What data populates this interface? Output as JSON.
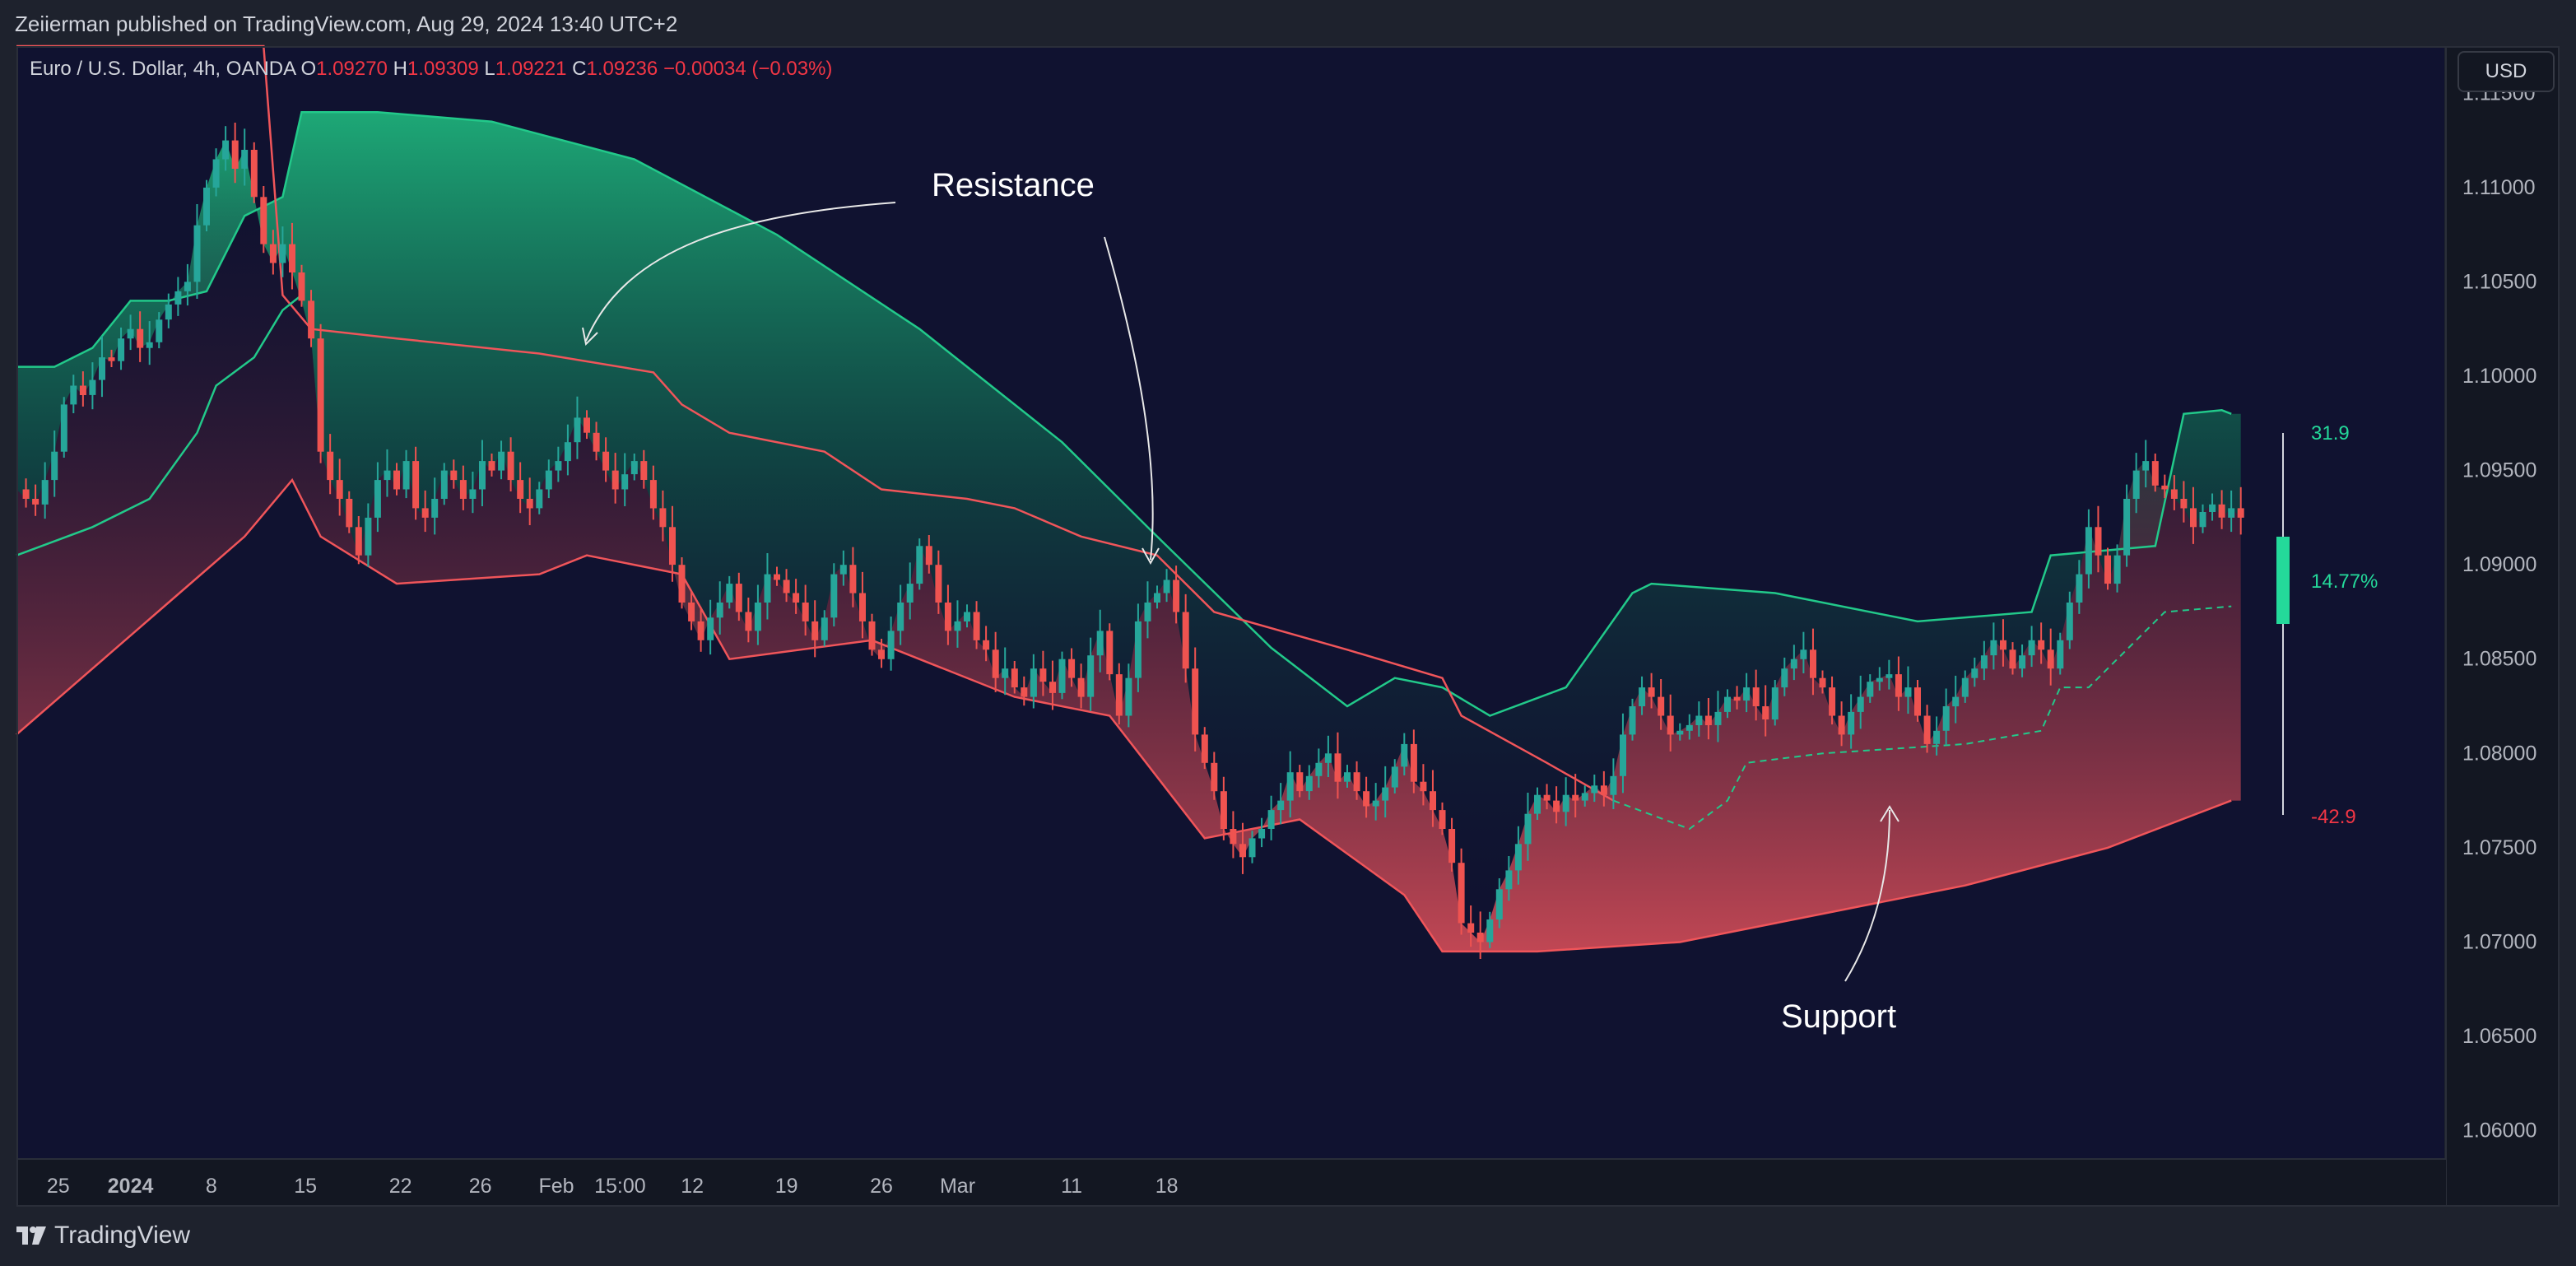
{
  "header": {
    "published": "Zeiierman published on TradingView.com, Aug 29, 2024 13:40 UTC+2"
  },
  "legend": {
    "symbol": "Euro / U.S. Dollar, 4h, OANDA",
    "o_label": "O",
    "o": "1.09270",
    "h_label": "H",
    "h": "1.09309",
    "l_label": "L",
    "l": "1.09221",
    "c_label": "C",
    "c": "1.09236",
    "change": "−0.00034 (−0.03%)"
  },
  "currency_button": "USD",
  "brand": {
    "name": "TradingView"
  },
  "colors": {
    "background": "#101230",
    "resistance": "#22c98a",
    "support": "#f0555a",
    "candle_up": "#26a69a",
    "candle_down": "#ef5350",
    "axis_text": "#b2b5be",
    "accent_green": "#24d99a"
  },
  "chart_data": {
    "type": "candlestick",
    "title": "Euro / U.S. Dollar, 4h, OANDA",
    "ylim": [
      1.0585,
      1.1175
    ],
    "y_ticks": [
      "1.11500",
      "1.11000",
      "1.10500",
      "1.10000",
      "1.09500",
      "1.09000",
      "1.08500",
      "1.08000",
      "1.07500",
      "1.07000",
      "1.06500",
      "1.06000"
    ],
    "x_ticks": [
      "25",
      "2024",
      "8",
      "15",
      "22",
      "26",
      "Feb",
      "15:00",
      "12",
      "19",
      "26",
      "Mar",
      "11",
      "18"
    ],
    "annotations": [
      "Resistance",
      "Support"
    ],
    "gauge": {
      "top": "31.9",
      "middle": "14.77%",
      "bottom": "-42.9"
    },
    "series": [
      {
        "name": "Resistance",
        "description": "upper band",
        "x": [
          0,
          4,
          8,
          12,
          16,
          20,
          24,
          28,
          30,
          38,
          50,
          65,
          80,
          95,
          110,
          120,
          132,
          140,
          145,
          150,
          155,
          163,
          170,
          172,
          185,
          200,
          212,
          214,
          225,
          228,
          232,
          233
        ],
        "y": [
          1.1005,
          1.1005,
          1.1015,
          1.104,
          1.104,
          1.1045,
          1.1085,
          1.1095,
          1.114,
          1.114,
          1.1135,
          1.1115,
          1.1075,
          1.1025,
          1.0965,
          1.0915,
          1.0856,
          1.0825,
          1.084,
          1.0835,
          1.082,
          1.0835,
          1.0885,
          1.089,
          1.0885,
          1.087,
          1.0875,
          1.0905,
          1.091,
          1.098,
          1.0982,
          1.098
        ]
      },
      {
        "name": "Support",
        "description": "lower band",
        "x": [
          0,
          8,
          16,
          24,
          29,
          32,
          40,
          55,
          60,
          70,
          75,
          90,
          105,
          115,
          125,
          135,
          146,
          150,
          155,
          160,
          175,
          190,
          205,
          220,
          233
        ],
        "y": [
          1.081,
          1.0845,
          1.088,
          1.0915,
          1.0945,
          1.0915,
          1.089,
          1.0895,
          1.0905,
          1.0895,
          1.085,
          1.086,
          1.083,
          1.082,
          1.0755,
          1.0765,
          1.0725,
          1.0695,
          1.0695,
          1.0695,
          1.07,
          1.0715,
          1.073,
          1.075,
          1.0775
        ]
      },
      {
        "name": "Resistance line",
        "description": "inner red line",
        "x": [
          0,
          26,
          28,
          31,
          40,
          55,
          67,
          70,
          75,
          85,
          91,
          100,
          105,
          112,
          120,
          126,
          140,
          150,
          152,
          161,
          168
        ],
        "y": [
          1.1175,
          1.1175,
          1.1043,
          1.1025,
          1.102,
          1.1012,
          1.1002,
          1.0985,
          1.097,
          1.096,
          1.094,
          1.0935,
          1.093,
          1.0915,
          1.0905,
          1.0875,
          1.0855,
          1.084,
          1.082,
          1.0795,
          1.0775
        ]
      },
      {
        "name": "Support line",
        "description": "inner green line",
        "x": [
          0,
          8,
          14,
          19,
          21,
          25,
          28,
          30
        ],
        "y": [
          1.0905,
          1.092,
          1.0935,
          1.097,
          1.0995,
          1.101,
          1.1035,
          1.1043
        ]
      },
      {
        "name": "Dashed support",
        "description": "dashed projection",
        "x": [
          168,
          176,
          180,
          182,
          190,
          205,
          213,
          215,
          218,
          222,
          226,
          233
        ],
        "y": [
          1.0775,
          1.076,
          1.0775,
          1.0795,
          1.08,
          1.0805,
          1.0812,
          1.0835,
          1.0835,
          1.0855,
          1.0875,
          1.0878
        ]
      }
    ],
    "path_y": [
      1.094,
      1.0935,
      1.0932,
      1.0945,
      1.096,
      1.0985,
      1.0995,
      1.099,
      1.0998,
      1.101,
      1.1008,
      1.102,
      1.1025,
      1.1015,
      1.1018,
      1.103,
      1.1038,
      1.1045,
      1.105,
      1.108,
      1.11,
      1.1115,
      1.1125,
      1.111,
      1.112,
      1.1095,
      1.107,
      1.106,
      1.107,
      1.1055,
      1.104,
      1.102,
      1.096,
      1.0945,
      1.0935,
      1.092,
      1.0905,
      1.0925,
      1.0945,
      1.095,
      1.094,
      1.0955,
      1.093,
      1.0925,
      1.0935,
      1.095,
      1.0945,
      1.0935,
      1.094,
      1.0955,
      1.095,
      1.096,
      1.0945,
      1.0935,
      1.093,
      1.094,
      1.095,
      1.0955,
      1.0965,
      1.0978,
      1.097,
      1.096,
      1.095,
      1.094,
      1.0948,
      1.0955,
      1.0945,
      1.093,
      1.092,
      1.09,
      1.088,
      1.087,
      1.086,
      1.0872,
      1.088,
      1.089,
      1.0875,
      1.0865,
      1.088,
      1.0895,
      1.0892,
      1.0885,
      1.088,
      1.087,
      1.086,
      1.0872,
      1.0895,
      1.09,
      1.0885,
      1.087,
      1.0855,
      1.085,
      1.0865,
      1.088,
      1.089,
      1.091,
      1.09,
      1.088,
      1.0865,
      1.087,
      1.0875,
      1.086,
      1.0855,
      1.084,
      1.0845,
      1.0835,
      1.083,
      1.0845,
      1.0838,
      1.0832,
      1.085,
      1.084,
      1.083,
      1.0852,
      1.0865,
      1.0842,
      1.082,
      1.084,
      1.087,
      1.088,
      1.0885,
      1.0892,
      1.0875,
      1.0845,
      1.081,
      1.0795,
      1.078,
      1.076,
      1.0752,
      1.0745,
      1.0755,
      1.076,
      1.077,
      1.0775,
      1.079,
      1.078,
      1.0788,
      1.0795,
      1.08,
      1.0785,
      1.079,
      1.078,
      1.0772,
      1.0775,
      1.0782,
      1.0793,
      1.0805,
      1.0785,
      1.078,
      1.077,
      1.076,
      1.0742,
      1.071,
      1.0705,
      1.07,
      1.0712,
      1.0728,
      1.0738,
      1.0752,
      1.0768,
      1.0778,
      1.0775,
      1.0769,
      1.0778,
      1.0775,
      1.0779,
      1.0783,
      1.0778,
      1.0788,
      1.081,
      1.0825,
      1.0835,
      1.083,
      1.082,
      1.081,
      1.0812,
      1.0815,
      1.082,
      1.0815,
      1.0822,
      1.083,
      1.0828,
      1.0835,
      1.0825,
      1.0818,
      1.0835,
      1.0845,
      1.085,
      1.0855,
      1.084,
      1.0835,
      1.082,
      1.081,
      1.0822,
      1.083,
      1.0838,
      1.084,
      1.0842,
      1.083,
      1.0835,
      1.082,
      1.0805,
      1.0812,
      1.0825,
      1.083,
      1.084,
      1.0845,
      1.0852,
      1.086,
      1.0855,
      1.0845,
      1.0852,
      1.086,
      1.0855,
      1.0845,
      1.086,
      1.088,
      1.0895,
      1.092,
      1.0905,
      1.089,
      1.0905,
      1.0935,
      1.095,
      1.0955,
      1.0942,
      1.094,
      1.0935,
      1.093,
      1.092,
      1.0928,
      1.0932,
      1.0925,
      1.093,
      1.0925
    ]
  }
}
